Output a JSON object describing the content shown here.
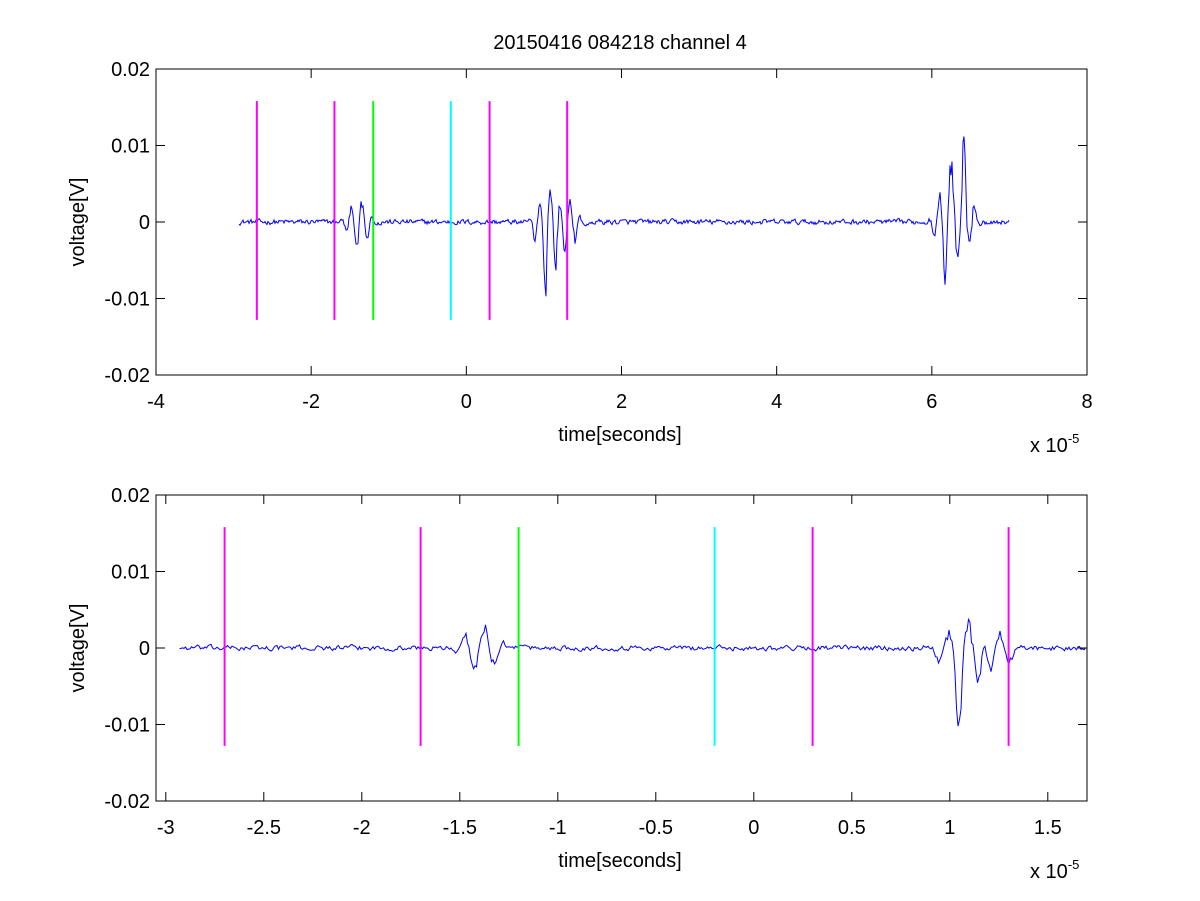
{
  "figure": {
    "title": "20150416 084218 channel 4"
  },
  "chart_data": [
    {
      "type": "line",
      "xlabel": "time[seconds]",
      "ylabel": "voltage[V]",
      "x_multiplier_label": "x 10",
      "x_multiplier_exponent": "-5",
      "xlim": [
        -4,
        8
      ],
      "ylim": [
        -0.02,
        0.02
      ],
      "xticks": [
        -4,
        -2,
        0,
        2,
        4,
        6,
        8
      ],
      "xtick_labels": [
        "-4",
        "-2",
        "0",
        "2",
        "4",
        "6",
        "8"
      ],
      "yticks": [
        -0.02,
        -0.01,
        0,
        0.01,
        0.02
      ],
      "ytick_labels": [
        "-0.02",
        "-0.01",
        "0",
        "0.01",
        "0.02"
      ],
      "markers": [
        {
          "x": -2.7,
          "y0": -0.0128,
          "y1": 0.0158,
          "color": "#ff00ff"
        },
        {
          "x": -1.7,
          "y0": -0.0128,
          "y1": 0.0158,
          "color": "#ff00ff"
        },
        {
          "x": -1.2,
          "y0": -0.0128,
          "y1": 0.0158,
          "color": "#00ff00"
        },
        {
          "x": -0.2,
          "y0": -0.0128,
          "y1": 0.0158,
          "color": "#00ffff"
        },
        {
          "x": 0.3,
          "y0": -0.0128,
          "y1": 0.0158,
          "color": "#ff00ff"
        },
        {
          "x": 1.3,
          "y0": -0.0128,
          "y1": 0.0158,
          "color": "#ff00ff"
        }
      ],
      "signal": {
        "color": "#0000ff",
        "x_range": [
          -2.93,
          7.0
        ],
        "noise_amplitude": 0.0004,
        "events": [
          {
            "x": -1.38,
            "peak": 0.0035,
            "trough": -0.0042
          },
          {
            "x": 1.05,
            "peak": 0.0048,
            "trough": -0.0115
          },
          {
            "x": 1.3,
            "peak": 0.003,
            "trough": -0.0045
          },
          {
            "x": 6.2,
            "peak": 0.0085,
            "trough": -0.0092
          },
          {
            "x": 6.38,
            "peak": 0.0143,
            "trough": -0.0052
          }
        ]
      }
    },
    {
      "type": "line",
      "xlabel": "time[seconds]",
      "ylabel": "voltage[V]",
      "x_multiplier_label": "x 10",
      "x_multiplier_exponent": "-5",
      "xlim": [
        -3.05,
        1.7
      ],
      "ylim": [
        -0.02,
        0.02
      ],
      "xticks": [
        -3,
        -2.5,
        -2,
        -1.5,
        -1,
        -0.5,
        0,
        0.5,
        1,
        1.5
      ],
      "xtick_labels": [
        "-3",
        "-2.5",
        "-2",
        "-1.5",
        "-1",
        "-0.5",
        "0",
        "0.5",
        "1",
        "1.5"
      ],
      "yticks": [
        -0.02,
        -0.01,
        0,
        0.01,
        0.02
      ],
      "ytick_labels": [
        "-0.02",
        "-0.01",
        "0",
        "0.01",
        "0.02"
      ],
      "markers": [
        {
          "x": -2.7,
          "y0": -0.0128,
          "y1": 0.0158,
          "color": "#ff00ff"
        },
        {
          "x": -1.7,
          "y0": -0.0128,
          "y1": 0.0158,
          "color": "#ff00ff"
        },
        {
          "x": -1.2,
          "y0": -0.0128,
          "y1": 0.0158,
          "color": "#00ff00"
        },
        {
          "x": -0.2,
          "y0": -0.0128,
          "y1": 0.0158,
          "color": "#00ffff"
        },
        {
          "x": 0.3,
          "y0": -0.0128,
          "y1": 0.0158,
          "color": "#ff00ff"
        },
        {
          "x": 1.3,
          "y0": -0.0128,
          "y1": 0.0158,
          "color": "#ff00ff"
        }
      ],
      "signal": {
        "color": "#0000ff",
        "x_range": [
          -2.93,
          1.7
        ],
        "noise_amplitude": 0.0004,
        "events": [
          {
            "x": -1.4,
            "peak": 0.0035,
            "trough": -0.0042
          },
          {
            "x": 1.07,
            "peak": 0.0048,
            "trough": -0.0115
          },
          {
            "x": 1.23,
            "peak": 0.0025,
            "trough": -0.0048
          }
        ]
      }
    }
  ]
}
